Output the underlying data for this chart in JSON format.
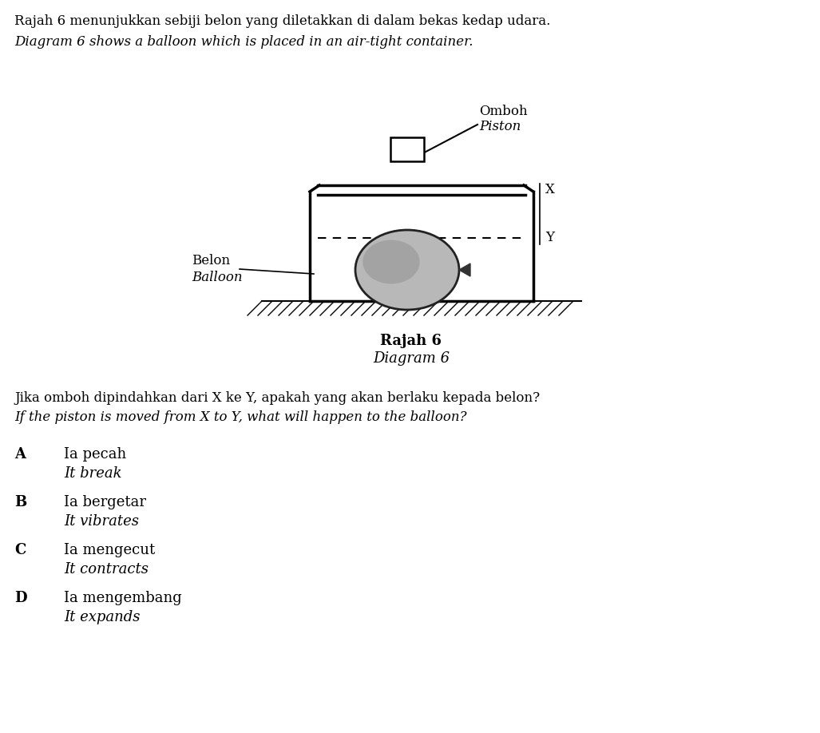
{
  "title_line1": "Rajah 6 menunjukkan sebiji belon yang diletakkan di dalam bekas kedap udara.",
  "title_line2": "Diagram 6 shows a balloon which is placed in an air-tight container.",
  "diagram_label": "Rajah 6",
  "diagram_label2": "Diagram 6",
  "question_line1": "Jika omboh dipindahkan dari X ke Y, apakah yang akan berlaku kepada belon?",
  "question_line2": "If the piston is moved from X to Y, what will happen to the balloon?",
  "options": [
    [
      "A",
      "Ia pecah",
      "It break"
    ],
    [
      "B",
      "Ia bergetar",
      "It vibrates"
    ],
    [
      "C",
      "Ia mengecut",
      "It contracts"
    ],
    [
      "D",
      "Ia mengembang",
      "It expands"
    ]
  ],
  "bg_color": "#ffffff",
  "text_color": "#000000",
  "balloon_fill": "#b8b8b8",
  "piston_label": "Omboh",
  "piston_label2": "Piston",
  "belon_label": "Belon",
  "belon_label2": "Balloon"
}
